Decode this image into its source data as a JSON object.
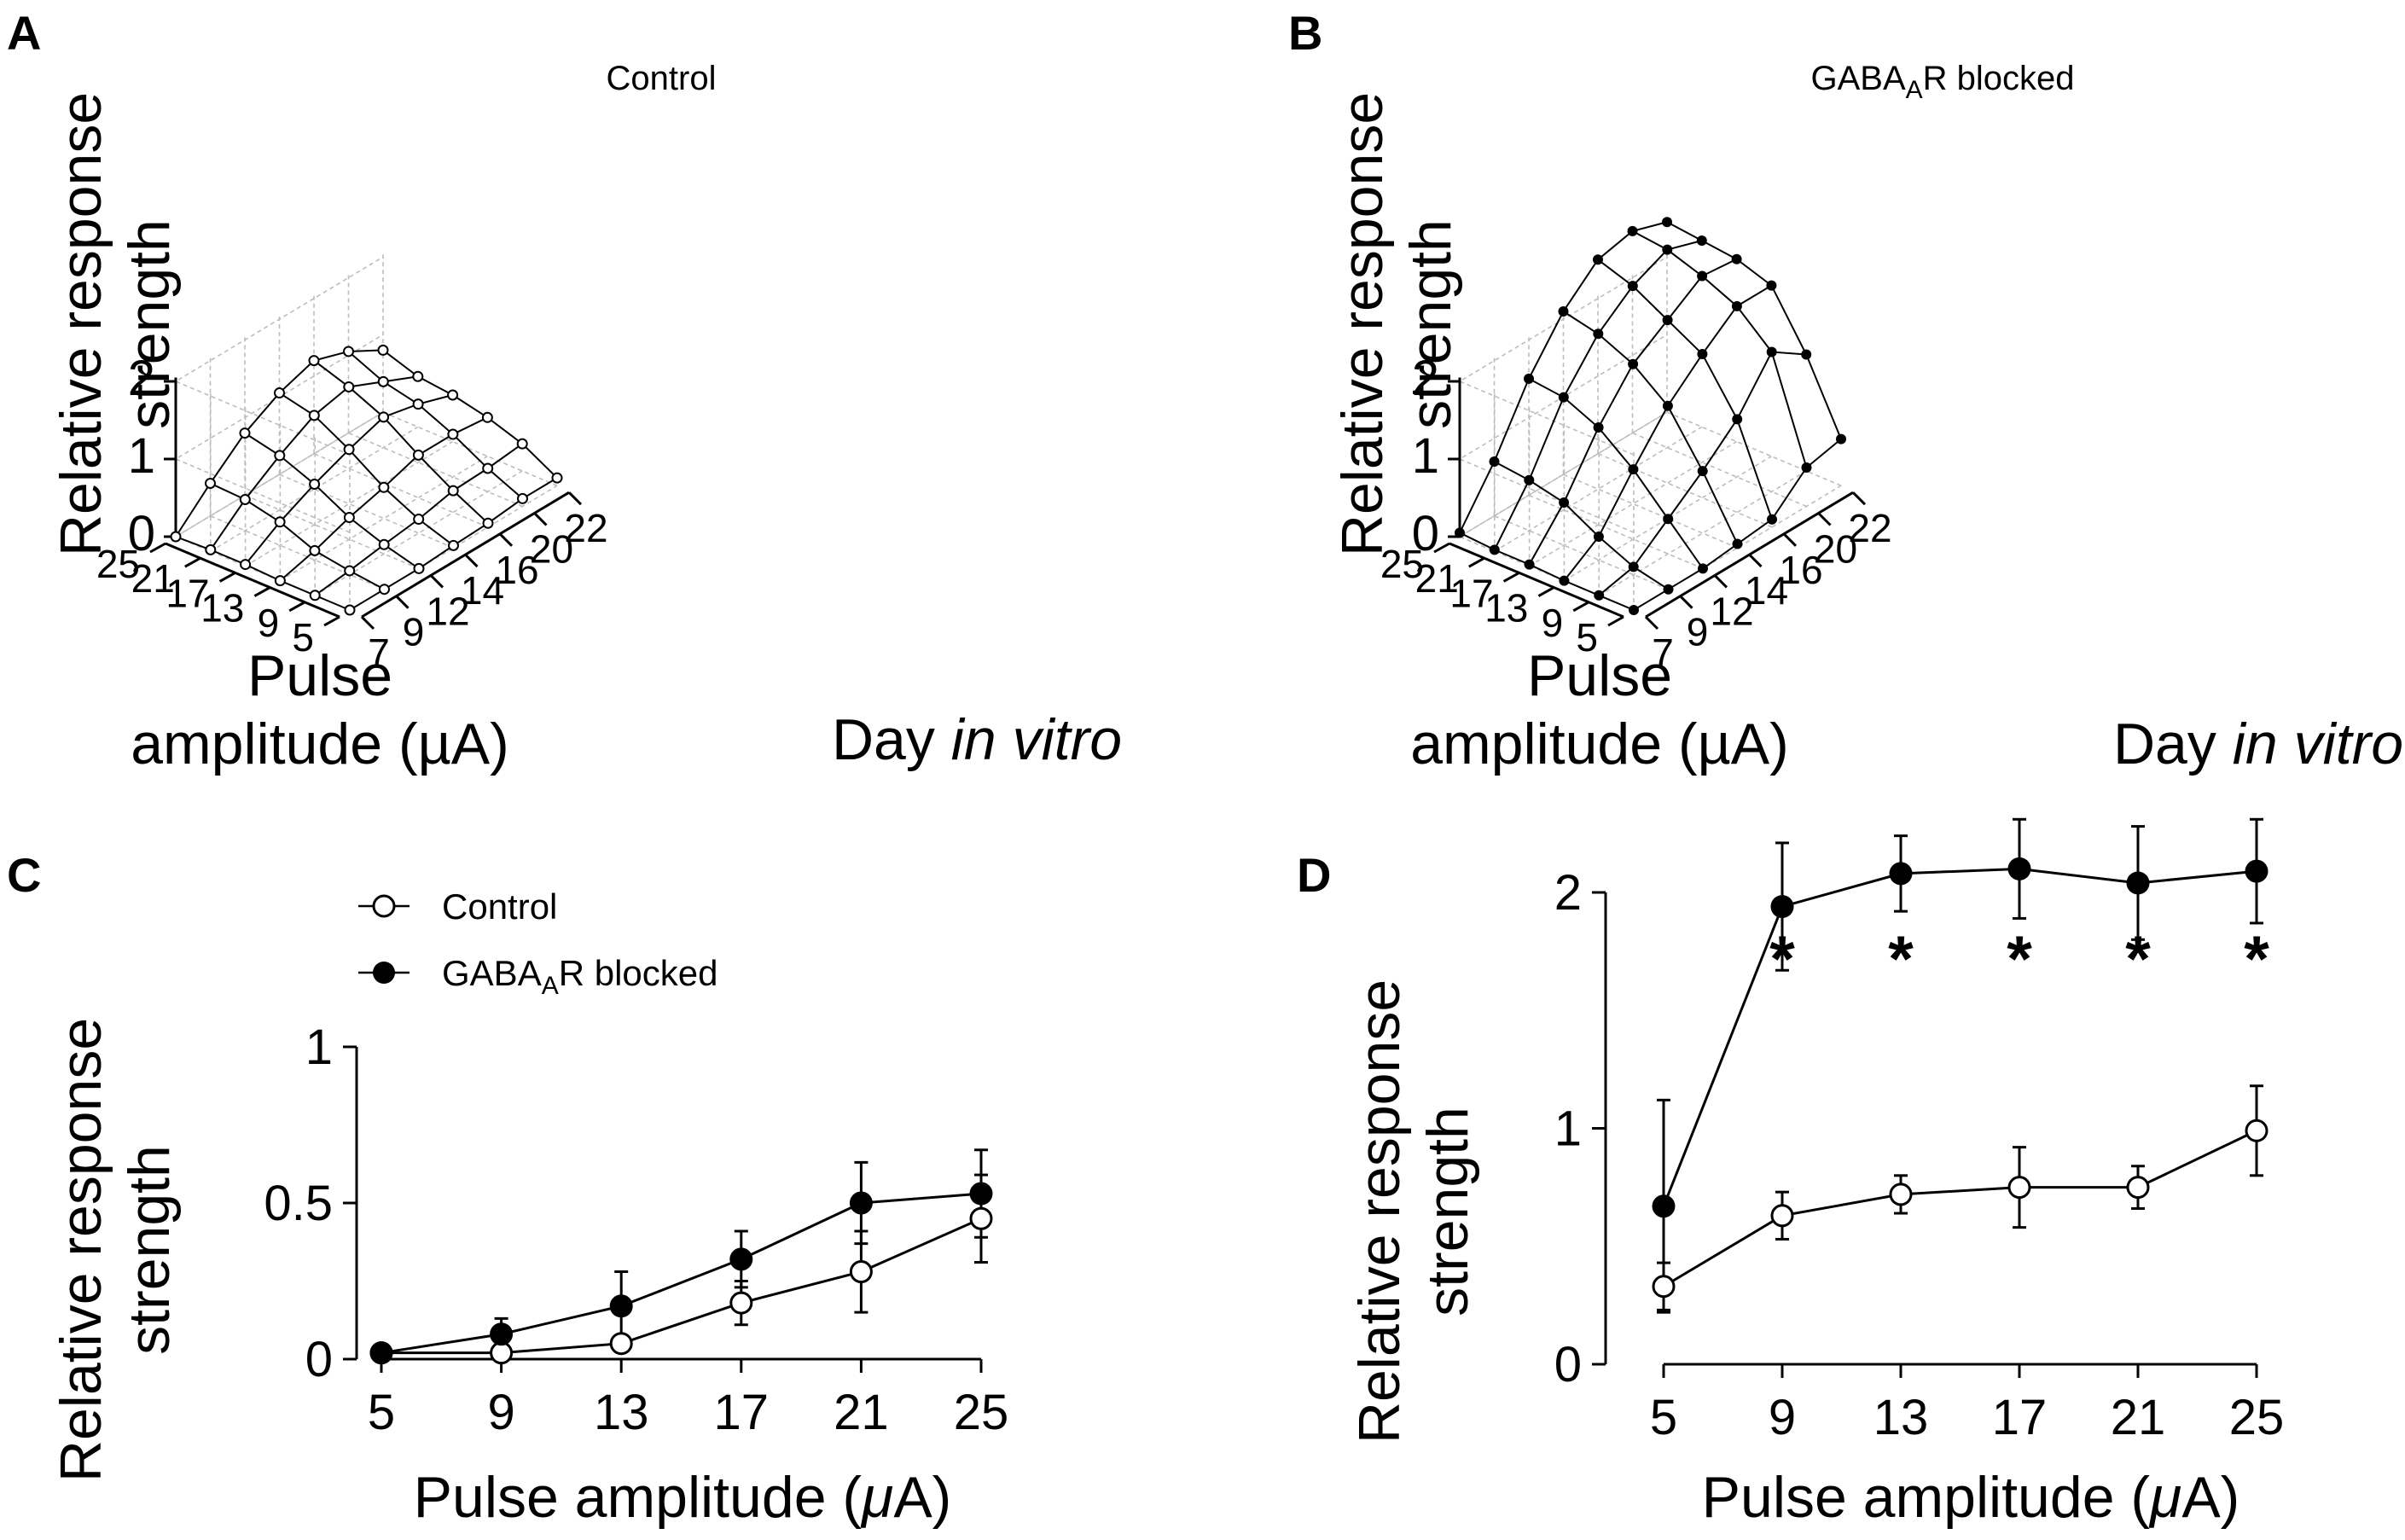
{
  "panels": {
    "A": {
      "letter": "A",
      "title": "Control"
    },
    "B": {
      "letter": "B",
      "title_main": "GABA",
      "title_sub": "A",
      "title_end": "R blocked"
    },
    "C": {
      "letter": "C"
    },
    "D": {
      "letter": "D"
    }
  },
  "labels": {
    "ylabel_line1": "Relative response",
    "ylabel_line2": "strength",
    "pulse_line1": "Pulse",
    "pulse_line2": "amplitude (µA)",
    "day_prefix": "Day ",
    "day_italic": "in vitro",
    "xlabel_prefix": "Pulse amplitude (",
    "xlabel_mu": "μ",
    "xlabel_suffix": "A)",
    "legend_control": "Control",
    "legend_blocked_main": "GABA",
    "legend_blocked_sub": "A",
    "legend_blocked_end": "R blocked",
    "significance_marker": "*"
  },
  "colors": {
    "ink": "#000000",
    "grid": "#bdbdbd",
    "open_fill": "#ffffff"
  },
  "chart_data": [
    {
      "panel": "A",
      "type": "surface3d",
      "title": "Control",
      "xlabel": "Day in vitro",
      "ylabel": "Pulse amplitude (µA)",
      "zlabel": "Relative response strength",
      "days": [
        7,
        9,
        12,
        14,
        16,
        20,
        22
      ],
      "amplitudes": [
        5,
        9,
        13,
        17,
        21,
        25
      ],
      "zlim": [
        0,
        2
      ],
      "z_ticks": [
        0,
        1,
        2
      ],
      "marker": "open",
      "z": [
        [
          0.0,
          0.0,
          0.0,
          0.03,
          0.05,
          0.1,
          0.1
        ],
        [
          0.0,
          0.05,
          0.12,
          0.18,
          0.28,
          0.3,
          0.35
        ],
        [
          0.0,
          0.12,
          0.28,
          0.4,
          0.55,
          0.55,
          0.5
        ],
        [
          0.02,
          0.3,
          0.52,
          0.7,
          0.85,
          0.75,
          0.6
        ],
        [
          0.02,
          0.4,
          0.7,
          0.95,
          1.05,
          0.85,
          0.65
        ],
        [
          0.0,
          0.42,
          0.8,
          1.05,
          1.2,
          1.05,
          0.8
        ]
      ]
    },
    {
      "panel": "B",
      "type": "surface3d",
      "title": "GABAAR blocked",
      "xlabel": "Day in vitro",
      "ylabel": "Pulse amplitude (µA)",
      "zlabel": "Relative response strength",
      "days": [
        7,
        9,
        12,
        14,
        16,
        20,
        22
      ],
      "amplitudes": [
        5,
        9,
        13,
        17,
        21,
        25
      ],
      "zlim": [
        0,
        2
      ],
      "z_ticks": [
        0,
        1,
        2
      ],
      "marker": "filled",
      "z": [
        [
          0.0,
          0.0,
          0.0,
          0.05,
          0.1,
          0.5,
          0.6
        ],
        [
          0.0,
          0.1,
          0.45,
          0.8,
          1.2,
          1.8,
          1.5
        ],
        [
          0.0,
          0.3,
          0.9,
          1.45,
          1.85,
          2.2,
          2.2
        ],
        [
          0.02,
          0.55,
          1.25,
          1.8,
          2.1,
          2.4,
          2.35
        ],
        [
          0.02,
          0.65,
          1.45,
          2.0,
          2.35,
          2.55,
          2.4
        ],
        [
          0.05,
          0.7,
          1.5,
          2.1,
          2.5,
          2.6,
          2.45
        ]
      ]
    },
    {
      "panel": "C",
      "type": "line",
      "xlabel": "Pulse amplitude (μA)",
      "ylabel": "Relative response strength",
      "x": [
        5,
        9,
        13,
        17,
        21,
        25
      ],
      "xlim": [
        5,
        25
      ],
      "ylim": [
        0,
        1
      ],
      "y_ticks": [
        0,
        0.5,
        1
      ],
      "y_tick_labels": [
        "0",
        "0.5",
        "1"
      ],
      "legend": "top-left",
      "series": [
        {
          "name": "Control",
          "marker": "open",
          "values": [
            0.02,
            0.02,
            0.05,
            0.18,
            0.28,
            0.45
          ],
          "err": [
            0.0,
            0.02,
            0.02,
            0.07,
            0.13,
            0.14
          ]
        },
        {
          "name": "GABAAR blocked",
          "marker": "filled",
          "values": [
            0.02,
            0.08,
            0.17,
            0.32,
            0.5,
            0.53
          ],
          "err": [
            0.01,
            0.05,
            0.11,
            0.09,
            0.13,
            0.14
          ]
        }
      ]
    },
    {
      "panel": "D",
      "type": "line",
      "xlabel": "Pulse amplitude (μA)",
      "ylabel": "Relative response strength",
      "x": [
        5,
        9,
        13,
        17,
        21,
        25
      ],
      "xlim": [
        5,
        25
      ],
      "ylim": [
        0,
        2
      ],
      "y_ticks": [
        0,
        1,
        2
      ],
      "y_tick_labels": [
        "0",
        "1",
        "2"
      ],
      "significance": [
        false,
        true,
        true,
        true,
        true,
        true
      ],
      "series": [
        {
          "name": "Control",
          "marker": "open",
          "values": [
            0.33,
            0.63,
            0.72,
            0.75,
            0.75,
            0.99
          ],
          "err": [
            0.1,
            0.1,
            0.08,
            0.17,
            0.09,
            0.19
          ]
        },
        {
          "name": "GABAAR blocked",
          "marker": "filled",
          "values": [
            0.67,
            1.94,
            2.08,
            2.1,
            2.04,
            2.09
          ],
          "err": [
            0.45,
            0.27,
            0.16,
            0.21,
            0.24,
            0.22
          ]
        }
      ]
    }
  ]
}
